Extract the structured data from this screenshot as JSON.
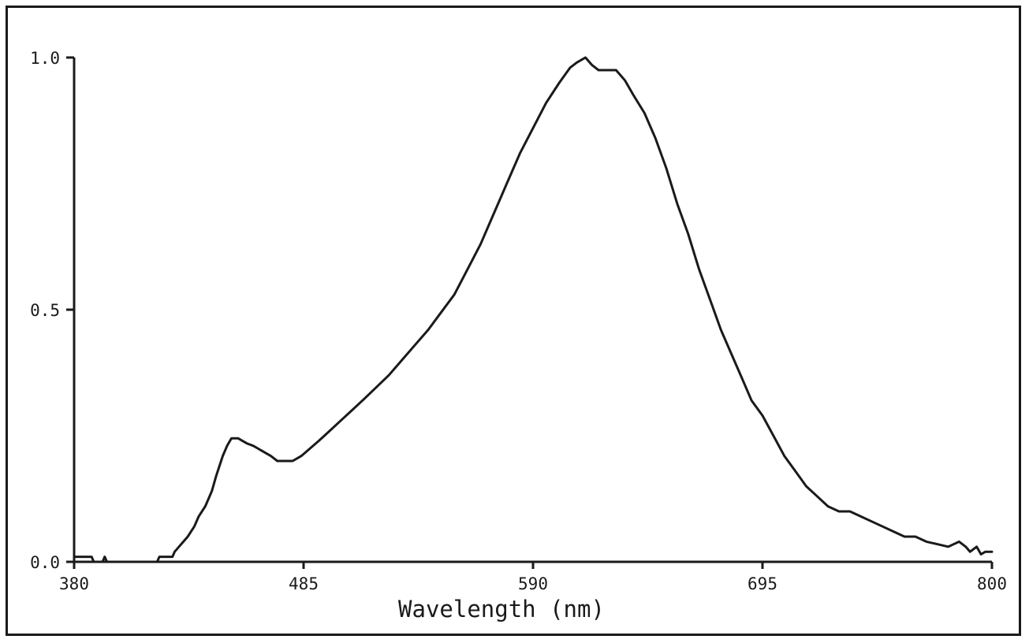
{
  "chart_data": {
    "type": "line",
    "title": "",
    "xlabel": "Wavelength (nm)",
    "ylabel": "",
    "xlim": [
      380,
      800
    ],
    "ylim": [
      0,
      1
    ],
    "x_ticks": [
      380,
      485,
      590,
      695,
      800
    ],
    "x_tick_labels": [
      "380",
      "485",
      "590",
      "695",
      "800"
    ],
    "y_ticks": [
      0,
      0.5,
      1
    ],
    "y_tick_labels": [
      "0.0",
      "0.5",
      "1.0"
    ],
    "grid": false,
    "legend": "none",
    "line_color": "#1a1a1a",
    "series": [
      {
        "x": [
          380,
          382,
          388,
          389,
          390,
          393,
          394,
          395,
          398,
          400,
          405,
          410,
          415,
          418,
          419,
          422,
          425,
          426,
          428,
          430,
          432,
          435,
          437,
          440,
          443,
          445,
          448,
          450,
          452,
          455,
          457,
          459,
          462,
          464,
          466,
          468,
          470,
          473,
          475,
          478,
          480,
          484,
          488,
          492,
          497,
          502,
          507,
          512,
          518,
          524,
          530,
          536,
          542,
          548,
          554,
          560,
          566,
          572,
          578,
          584,
          590,
          596,
          602,
          607,
          610,
          612,
          614,
          617,
          620,
          624,
          628,
          632,
          636,
          641,
          646,
          651,
          656,
          661,
          666,
          671,
          676,
          681,
          686,
          690,
          695,
          700,
          705,
          710,
          715,
          720,
          725,
          730,
          735,
          740,
          745,
          750,
          755,
          760,
          765,
          770,
          775,
          780,
          785,
          788,
          790,
          793,
          795,
          797,
          800
        ],
        "y": [
          0.01,
          0.01,
          0.01,
          0.0,
          0.0,
          0.0,
          0.01,
          0.0,
          0.0,
          0.0,
          0.0,
          0.0,
          0.0,
          0.0,
          0.01,
          0.01,
          0.01,
          0.02,
          0.03,
          0.04,
          0.05,
          0.07,
          0.09,
          0.11,
          0.14,
          0.17,
          0.21,
          0.23,
          0.245,
          0.245,
          0.24,
          0.235,
          0.23,
          0.225,
          0.22,
          0.215,
          0.21,
          0.2,
          0.2,
          0.2,
          0.2,
          0.21,
          0.225,
          0.24,
          0.26,
          0.28,
          0.3,
          0.32,
          0.345,
          0.37,
          0.4,
          0.43,
          0.46,
          0.495,
          0.53,
          0.58,
          0.63,
          0.69,
          0.75,
          0.81,
          0.86,
          0.91,
          0.95,
          0.98,
          0.99,
          0.995,
          1.0,
          0.985,
          0.975,
          0.975,
          0.975,
          0.955,
          0.925,
          0.89,
          0.84,
          0.78,
          0.71,
          0.65,
          0.58,
          0.52,
          0.46,
          0.41,
          0.36,
          0.32,
          0.29,
          0.25,
          0.21,
          0.18,
          0.15,
          0.13,
          0.11,
          0.1,
          0.1,
          0.09,
          0.08,
          0.07,
          0.06,
          0.05,
          0.05,
          0.04,
          0.035,
          0.03,
          0.04,
          0.03,
          0.02,
          0.03,
          0.015,
          0.02,
          0.02
        ]
      }
    ]
  }
}
